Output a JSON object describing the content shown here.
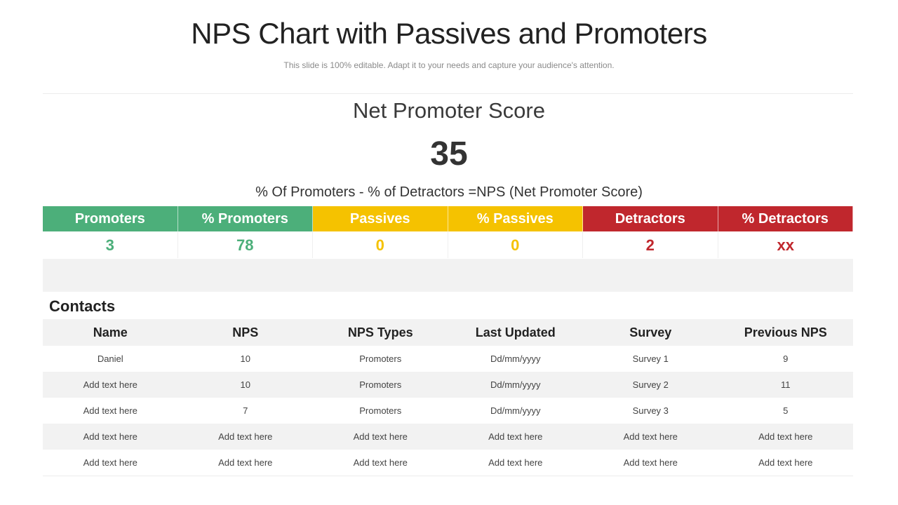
{
  "header": {
    "title": "NPS Chart with Passives and Promoters",
    "subtitle": "This slide is 100% editable. Adapt it to your needs and capture your audience's attention."
  },
  "score": {
    "label": "Net Promoter Score",
    "value": "35",
    "formula": "% Of Promoters - % of Detractors =NPS (Net Promoter Score)"
  },
  "colors": {
    "promoters": "#4caf7a",
    "passives": "#f5c200",
    "detractors": "#c0272d"
  },
  "metrics": [
    {
      "label": "Promoters",
      "value": "3",
      "group": "promoters"
    },
    {
      "label": "% Promoters",
      "value": "78",
      "group": "promoters"
    },
    {
      "label": "Passives",
      "value": "0",
      "group": "passives"
    },
    {
      "label": "% Passives",
      "value": "0",
      "group": "passives"
    },
    {
      "label": "Detractors",
      "value": "2",
      "group": "detractors"
    },
    {
      "label": "% Detractors",
      "value": "xx",
      "group": "detractors"
    }
  ],
  "contacts": {
    "title": "Contacts",
    "columns": [
      "Name",
      "NPS",
      "NPS Types",
      "Last Updated",
      "Survey",
      "Previous NPS"
    ],
    "rows": [
      [
        "Daniel",
        "10",
        "Promoters",
        "Dd/mm/yyyy",
        "Survey 1",
        "9"
      ],
      [
        "Add text here",
        "10",
        "Promoters",
        "Dd/mm/yyyy",
        "Survey 2",
        "11"
      ],
      [
        "Add text here",
        "7",
        "Promoters",
        "Dd/mm/yyyy",
        "Survey 3",
        "5"
      ],
      [
        "Add text here",
        "Add text here",
        "Add text here",
        "Add text here",
        "Add text here",
        "Add text here"
      ],
      [
        "Add text here",
        "Add text here",
        "Add text here",
        "Add text here",
        "Add text here",
        "Add text here"
      ]
    ]
  }
}
